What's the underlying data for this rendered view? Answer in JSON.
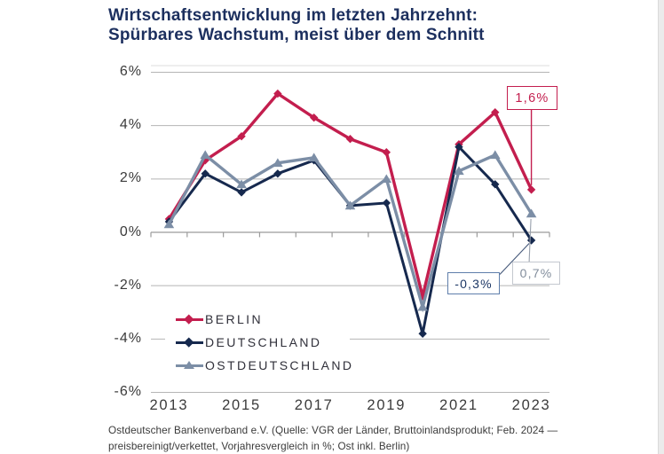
{
  "header": {
    "title_line1": "Wirtschaftsentwicklung im letzten Jahrzehnt:",
    "title_line2": "Spürbares Wachstum, meist über dem Schnitt"
  },
  "colors": {
    "berlin": "#C31E4E",
    "deutschland": "#16294E",
    "ostdeutschland": "#7C8EA6",
    "title": "#1C2F5E",
    "grid": "#B5B5B5",
    "axis_line": "#9B9B9B",
    "axis_text": "#3B3B3B",
    "frame_top": "#DCDCDC",
    "callout_berlin_border": "#C31E4E",
    "callout_berlin_text": "#C31E4E",
    "callout_deutschland_border": "#5F7EAB",
    "callout_deutschland_text": "#1D3765",
    "callout_ost_border": "#C4C8CF",
    "callout_ost_text": "#828D9C"
  },
  "chart_data": {
    "type": "line",
    "title": "Wirtschaftsentwicklung im letzten Jahrzehnt: Spürbares Wachstum, meist über dem Schnitt",
    "x": [
      2013,
      2014,
      2015,
      2016,
      2017,
      2018,
      2019,
      2020,
      2021,
      2022,
      2023
    ],
    "x_tick_labels": [
      "2013",
      "2015",
      "2017",
      "2019",
      "2021",
      "2023"
    ],
    "y_axis": {
      "unit": "%",
      "min": -6,
      "max": 6,
      "tick_step": 2,
      "tick_values": [
        6,
        4,
        2,
        0,
        -2,
        -4,
        -6
      ],
      "tick_labels": [
        "6%",
        "4%",
        "2%",
        "0%",
        "-2%",
        "-4%",
        "-6%"
      ]
    },
    "grid": "horizontal",
    "legend_position": "inside-bottom-left",
    "series": [
      {
        "name": "BERLIN",
        "marker": "diamond",
        "color": "#C31E4E",
        "values": [
          0.5,
          2.7,
          3.6,
          5.2,
          4.3,
          3.5,
          3.0,
          -2.4,
          3.3,
          4.5,
          1.6
        ]
      },
      {
        "name": "DEUTSCHLAND",
        "marker": "diamond",
        "color": "#16294E",
        "values": [
          0.4,
          2.2,
          1.5,
          2.2,
          2.7,
          1.0,
          1.1,
          -3.8,
          3.2,
          1.8,
          -0.3
        ]
      },
      {
        "name": "OSTDEUTSCHLAND",
        "marker": "triangle",
        "color": "#7C8EA6",
        "values": [
          0.3,
          2.9,
          1.8,
          2.6,
          2.8,
          1.0,
          2.0,
          -2.8,
          2.3,
          2.9,
          0.7
        ]
      }
    ],
    "annotations": [
      {
        "text": "1,6%",
        "series": "BERLIN",
        "year": 2023,
        "value": 1.6
      },
      {
        "text": "-0,3%",
        "series": "DEUTSCHLAND",
        "year": 2023,
        "value": -0.3
      },
      {
        "text": "0,7%",
        "series": "OSTDEUTSCHLAND",
        "year": 2023,
        "value": 0.7
      }
    ]
  },
  "footer": {
    "line1": "Ostdeutscher Bankenverband e.V. (Quelle: VGR der Länder, Bruttoinlandsprodukt; Feb. 2024 —",
    "line2": "preisbereinigt/verkettet, Vorjahresvergleich in %; Ost inkl. Berlin)"
  }
}
